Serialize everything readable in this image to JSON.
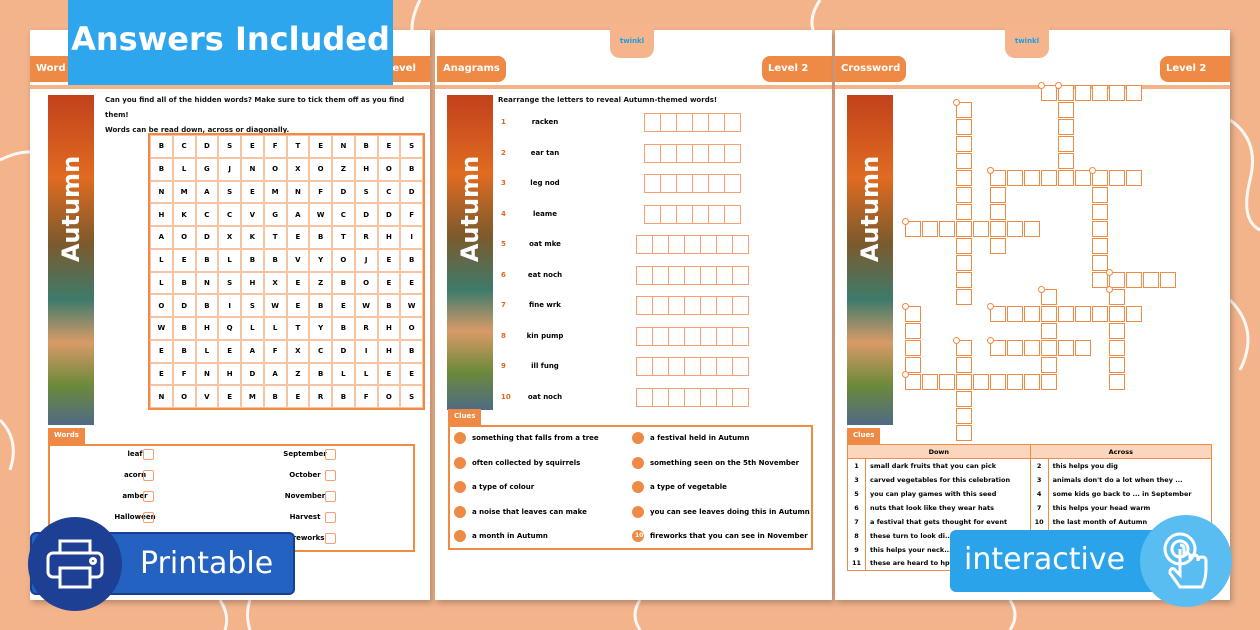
{
  "colors": {
    "background": "#f3b48c",
    "accent": "#ee8a45",
    "answers_badge": "#2ea6ee",
    "printable_badge": "#2362c0",
    "interactive_badge": "#2aa3ea"
  },
  "badges": {
    "answers": "Answers Included",
    "printable": "Printable",
    "interactive": "interactive",
    "printable_icon": "printer-icon",
    "interactive_icon": "touch-hand-icon"
  },
  "strip_title": "Autumn",
  "logo": "twinkl",
  "wordsearch": {
    "tab": "Word Search",
    "level": "Level 2",
    "instructions": [
      "Can you find all of the hidden words? Make sure to tick them off as you find them!",
      "Words can be read down, across or diagonally."
    ],
    "grid": [
      "BCDSEFTENBES",
      "BLGJNOXOZHOB",
      "NMASEMNFDSCD",
      "HKCCVGAWCDDF",
      "AODXKTEBTRHI",
      "LEBLBBVYOJEB",
      "LBNSHXEZBOEE",
      "ODBISWEBEWBW",
      "WBHQLLTYBRHO",
      "EBLEAFXCDIHB",
      "EFNHDAZBLLEE",
      "NOVEMBERBFOS"
    ],
    "words_tab": "Words",
    "words_left": [
      "leaf",
      "acorn",
      "amber",
      "Halloween"
    ],
    "words_right": [
      "September",
      "October",
      "November",
      "Harvest",
      "Fireworks"
    ]
  },
  "anagrams": {
    "tab": "Anagrams",
    "level": "Level 2",
    "instructions": "Rearrange the letters to reveal Autumn-themed words!",
    "items": [
      {
        "n": "1",
        "w": "racken",
        "len": 6
      },
      {
        "n": "2",
        "w": "ear tan",
        "len": 6
      },
      {
        "n": "3",
        "w": "leg nod",
        "len": 6
      },
      {
        "n": "4",
        "w": "leame",
        "len": 6
      },
      {
        "n": "5",
        "w": "oat mke",
        "len": 7
      },
      {
        "n": "6",
        "w": "eat noch",
        "len": 7
      },
      {
        "n": "7",
        "w": "fine wrk",
        "len": 7
      },
      {
        "n": "8",
        "w": "kin pump",
        "len": 7
      },
      {
        "n": "9",
        "w": "ill fung",
        "len": 7
      },
      {
        "n": "10",
        "w": "oat noch",
        "len": 7
      }
    ],
    "clues_tab": "Clues",
    "clues": [
      "something that falls from a tree",
      "often collected by squirrels",
      "a type of colour",
      "a noise that leaves can make",
      "a month in Autumn",
      "a festival held in Autumn",
      "something seen on the 5th November",
      "a type of vegetable",
      "you can see leaves doing this in Autumn",
      "fireworks that you can see in November"
    ]
  },
  "crossword": {
    "tab": "Crossword",
    "level": "Level 2",
    "clues_tab": "Clues",
    "down_header": "Down",
    "across_header": "Across",
    "down": [
      {
        "n": "1",
        "t": "small dark fruits that you can pick"
      },
      {
        "n": "3",
        "t": "carved vegetables for this celebration"
      },
      {
        "n": "5",
        "t": "you can play games with this seed"
      },
      {
        "n": "6",
        "t": "nuts that look like they wear hats"
      },
      {
        "n": "7",
        "t": "a festival that gets thought for event"
      },
      {
        "n": "8",
        "t": "these turn to look di..."
      },
      {
        "n": "9",
        "t": "this helps your neck..."
      },
      {
        "n": "11",
        "t": "these are heard to hp..."
      }
    ],
    "across": [
      {
        "n": "2",
        "t": "this helps you dig"
      },
      {
        "n": "3",
        "t": "animals don't do a lot when they ..."
      },
      {
        "n": "4",
        "t": "some kids go back to ... in September"
      },
      {
        "n": "7",
        "t": "this helps your head warm"
      },
      {
        "n": "10",
        "t": "the last month of Autumn"
      },
      {
        "n": "",
        "t": ""
      },
      {
        "n": "",
        "t": ""
      },
      {
        "n": "",
        "t": ""
      }
    ]
  }
}
